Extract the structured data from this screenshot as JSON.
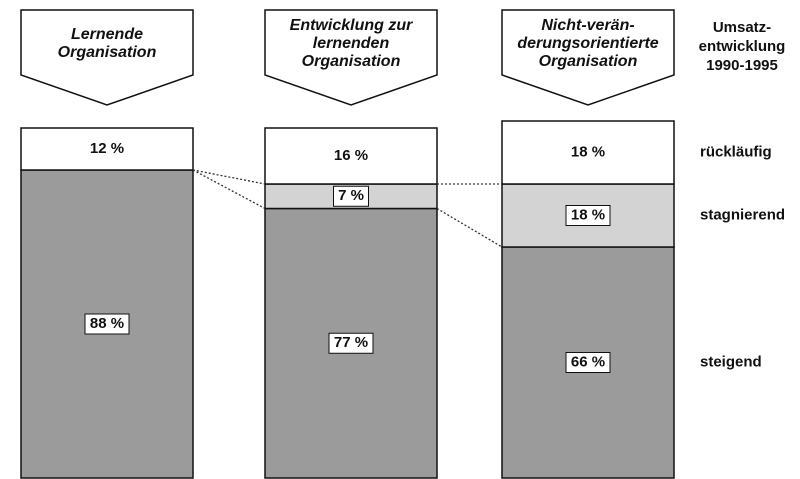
{
  "chart_data": {
    "type": "stacked_bar",
    "categories": [
      [
        "Lernende",
        "Organisation"
      ],
      [
        "Entwicklung zur",
        "lernenden",
        "Organisation"
      ],
      [
        "Nicht-verän-",
        "derungsorientierte",
        "Organisation"
      ]
    ],
    "legend_title": [
      "Umsatz-",
      "entwicklung",
      "1990-1995"
    ],
    "ylim": [
      0,
      100
    ],
    "series": [
      {
        "name": "steigend",
        "color": "#9b9b9b",
        "values": [
          88,
          77,
          66
        ],
        "value_labels": [
          "88 %",
          "77 %",
          "66 %"
        ]
      },
      {
        "name": "stagnierend",
        "color": "#d3d3d3",
        "values": [
          null,
          7,
          18
        ],
        "value_labels": [
          null,
          "7 %",
          "18 %"
        ]
      },
      {
        "name": "rückläufig",
        "color": "#ffffff",
        "values": [
          12,
          16,
          18
        ],
        "value_labels": [
          "12 %",
          "16 %",
          "18 %"
        ]
      }
    ]
  }
}
